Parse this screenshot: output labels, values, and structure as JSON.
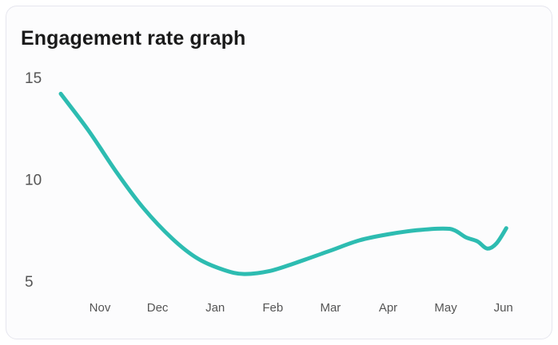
{
  "chart_data": {
    "type": "line",
    "title": "Engagement rate graph",
    "xlabel": "",
    "ylabel": "",
    "ylim": [
      5,
      15
    ],
    "yticks": [
      "15",
      "10",
      "5"
    ],
    "categories": [
      "Nov",
      "Dec",
      "Jan",
      "Feb",
      "Mar",
      "Apr",
      "May",
      "Jun"
    ],
    "grid": false,
    "series": [
      {
        "name": "Engagement rate",
        "color": "#2dbcb1",
        "points": [
          {
            "x": -0.68,
            "y": 14.2
          },
          {
            "x": -0.2,
            "y": 12.4
          },
          {
            "x": 0.3,
            "y": 10.3
          },
          {
            "x": 0.75,
            "y": 8.6
          },
          {
            "x": 1.25,
            "y": 7.1
          },
          {
            "x": 1.7,
            "y": 6.1
          },
          {
            "x": 2.15,
            "y": 5.55
          },
          {
            "x": 2.5,
            "y": 5.35
          },
          {
            "x": 2.95,
            "y": 5.5
          },
          {
            "x": 3.4,
            "y": 5.9
          },
          {
            "x": 4.0,
            "y": 6.5
          },
          {
            "x": 4.5,
            "y": 7.0
          },
          {
            "x": 5.0,
            "y": 7.3
          },
          {
            "x": 5.5,
            "y": 7.5
          },
          {
            "x": 5.95,
            "y": 7.58
          },
          {
            "x": 6.15,
            "y": 7.5
          },
          {
            "x": 6.35,
            "y": 7.15
          },
          {
            "x": 6.55,
            "y": 6.95
          },
          {
            "x": 6.72,
            "y": 6.6
          },
          {
            "x": 6.88,
            "y": 6.85
          },
          {
            "x": 7.05,
            "y": 7.6
          }
        ]
      }
    ]
  }
}
